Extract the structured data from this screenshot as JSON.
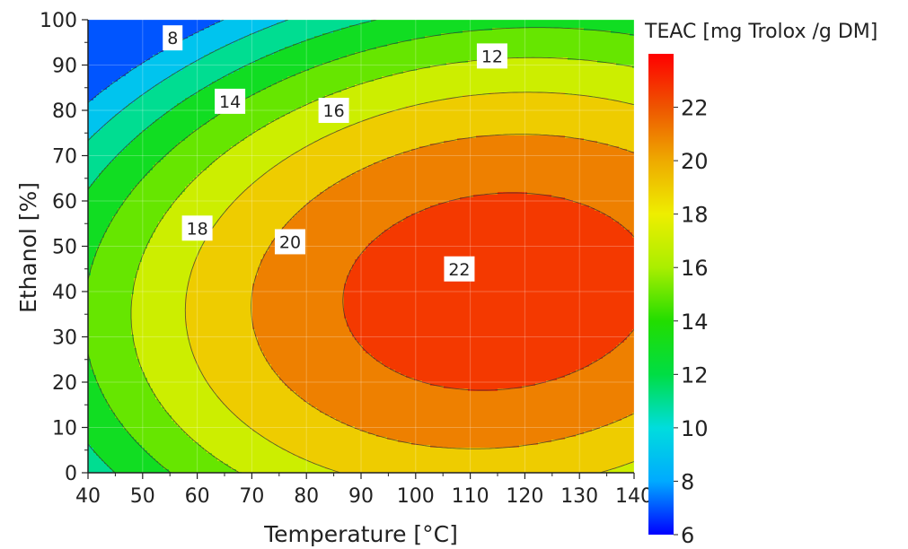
{
  "chart_data": {
    "type": "contour",
    "xlabel": "Temperature [°C]",
    "ylabel": "Ethanol [%]",
    "xlim": [
      40,
      140
    ],
    "ylim": [
      0,
      100
    ],
    "x_ticks": [
      40,
      50,
      60,
      70,
      80,
      90,
      100,
      110,
      120,
      130,
      140
    ],
    "y_ticks": [
      0,
      10,
      20,
      30,
      40,
      50,
      60,
      70,
      80,
      90,
      100
    ],
    "colorbar": {
      "title": "TEAC [mg Trolox /g DM]",
      "range": [
        6,
        24
      ],
      "ticks": [
        6,
        8,
        10,
        12,
        14,
        16,
        18,
        20,
        22
      ],
      "colormap": [
        "#0000ff",
        "#00aaff",
        "#00dddd",
        "#00dd44",
        "#22dd00",
        "#aaee00",
        "#eeee00",
        "#eeaa00",
        "#ee5500",
        "#ff0000"
      ]
    },
    "levels": [
      8,
      10,
      12,
      14,
      16,
      18,
      20,
      22
    ],
    "optimum": {
      "x": 115,
      "y": 40,
      "value": 23.3
    },
    "contour_labels": [
      {
        "text": "8",
        "x": 55.5,
        "y": 96
      },
      {
        "text": "12",
        "x": 114,
        "y": 92
      },
      {
        "text": "14",
        "x": 66,
        "y": 82
      },
      {
        "text": "16",
        "x": 85,
        "y": 80
      },
      {
        "text": "18",
        "x": 60,
        "y": 54
      },
      {
        "text": "20",
        "x": 77,
        "y": 51
      },
      {
        "text": "22",
        "x": 108,
        "y": 45
      }
    ]
  }
}
